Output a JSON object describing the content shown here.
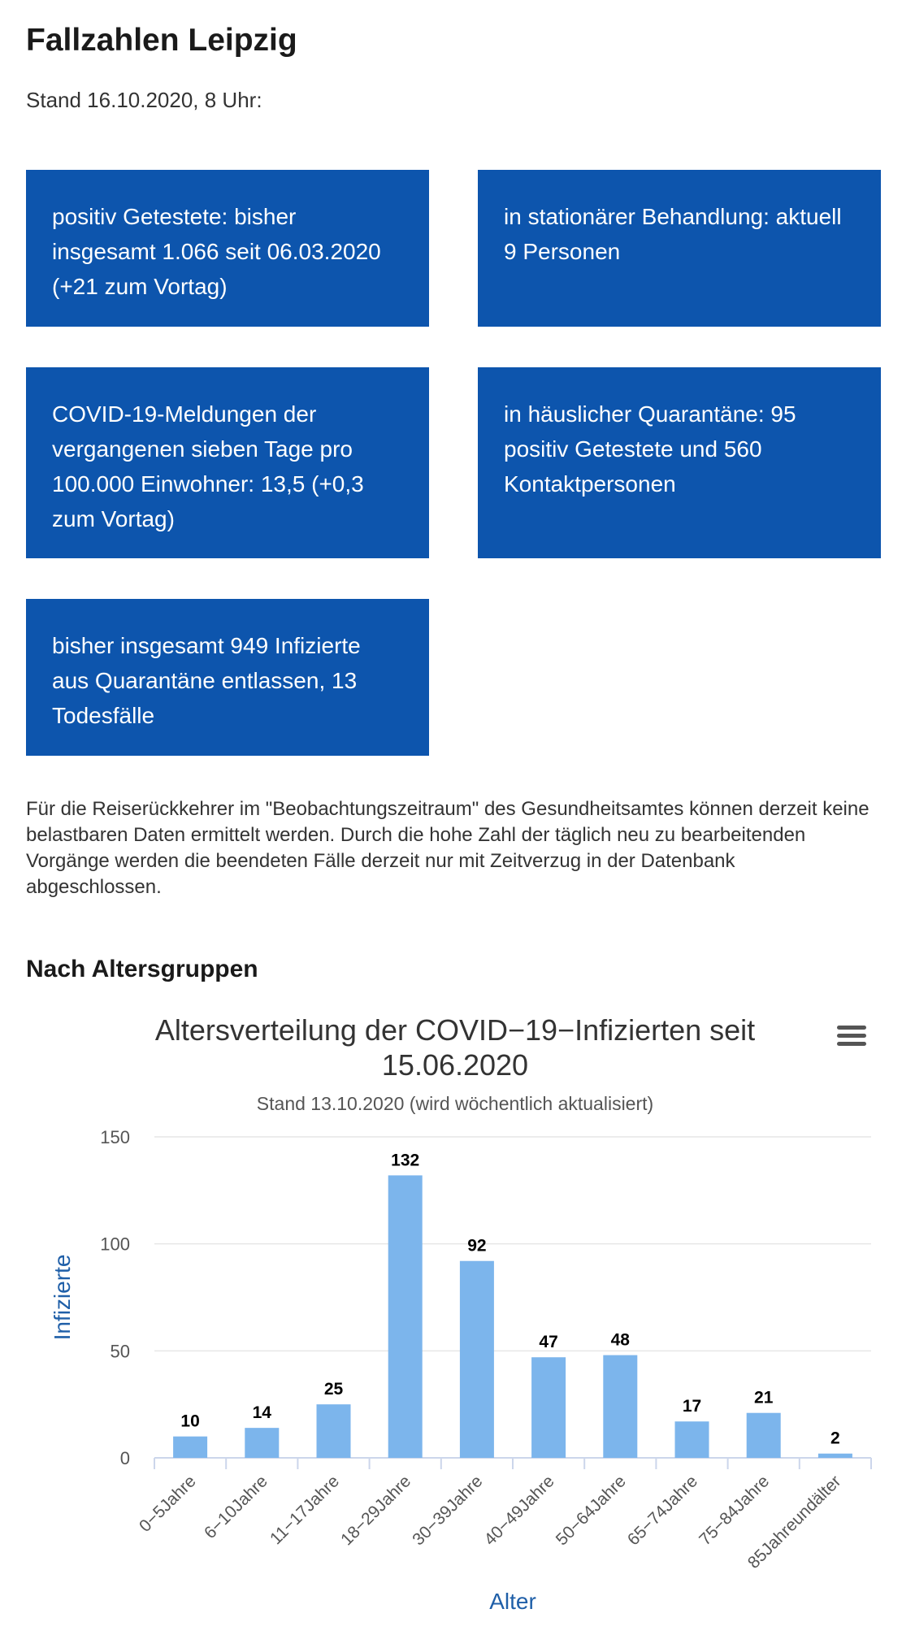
{
  "page": {
    "title": "Fallzahlen Leipzig",
    "stand": "Stand 16.10.2020, 8 Uhr:"
  },
  "tiles": [
    {
      "text": "positiv Getestete: bisher insgesamt 1.066 seit 06.03.2020 (+21 zum Vortag)"
    },
    {
      "text": "in stationärer Behandlung: aktuell 9 Personen"
    },
    {
      "text": "COVID-19-Meldungen der vergangenen sieben Tage pro 100.000 Einwohner: 13,5 (+0,3 zum Vortag)"
    },
    {
      "text": "in häuslicher Quarantäne: 95 positiv Getestete und 560 Kontaktpersonen"
    },
    {
      "text": "bisher insgesamt 949 Infizierte aus Quarantäne entlassen, 13 Todesfälle"
    }
  ],
  "note": "Für die Reiserückkehrer im \"Beobachtungszeitraum\" des Gesundheitsamtes können derzeit keine belastbaren Daten ermittelt werden. Durch die hohe Zahl der täglich neu zu bearbeitenden Vorgänge werden die beendeten Fälle derzeit nur mit Zeitverzug in der Datenbank abgeschlossen.",
  "section_title": "Nach Altersgruppen",
  "colors": {
    "tile_background": "#0d55ad",
    "bar": "#7cb5ec",
    "axis_title": "#1f5fa8"
  },
  "chart_menu": {
    "icon": "hamburger-menu-icon"
  },
  "chart_data": {
    "type": "bar",
    "title": "Altersverteilung der COVID−19−Infizierten seit 15.06.2020",
    "subtitle": "Stand 13.10.2020 (wird wöchentlich aktualisiert)",
    "xlabel": "Alter",
    "ylabel": "Infizierte",
    "categories": [
      "0−5Jahre",
      "6−10Jahre",
      "11−17Jahre",
      "18−29Jahre",
      "30−39Jahre",
      "40−49Jahre",
      "50−64Jahre",
      "65−74Jahre",
      "75−84Jahre",
      "85Jahreundälter"
    ],
    "values": [
      10,
      14,
      25,
      132,
      92,
      47,
      48,
      17,
      21,
      2
    ],
    "ylim": [
      0,
      150
    ],
    "yticks": [
      0,
      50,
      100,
      150
    ],
    "grid": true,
    "legend": "none"
  }
}
